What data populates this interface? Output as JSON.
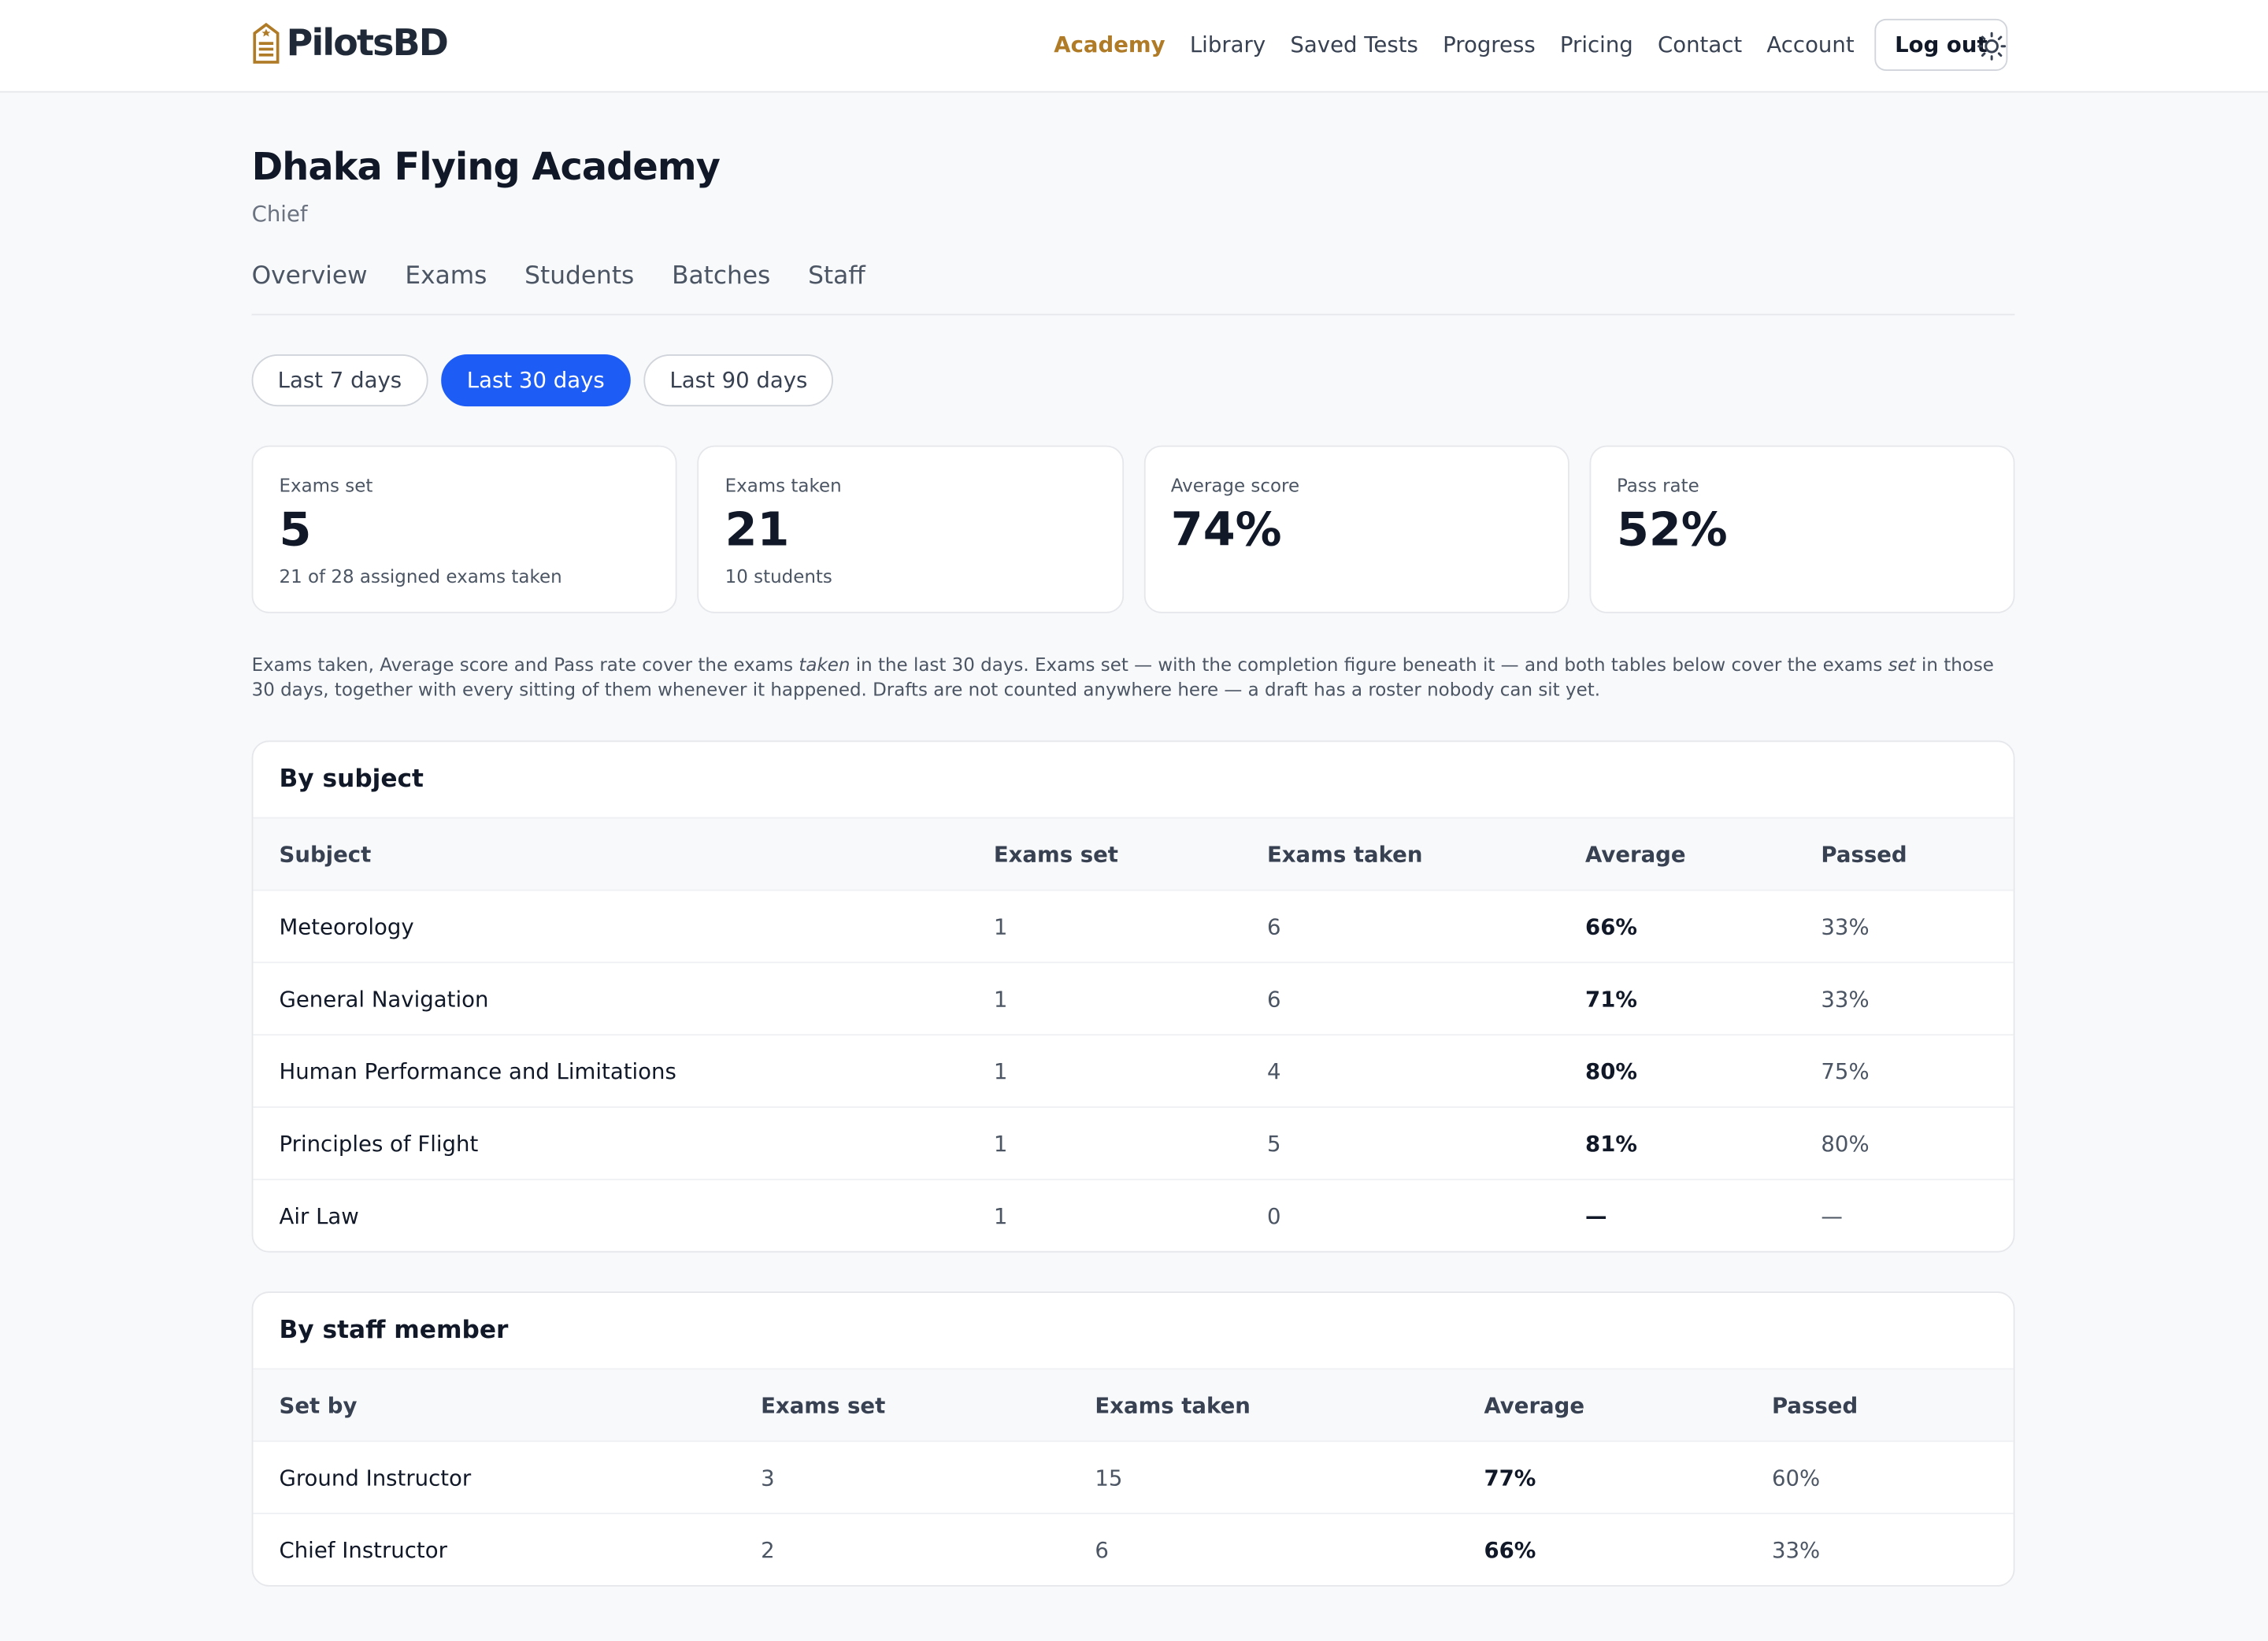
{
  "nav": {
    "brand": "PilotsBD",
    "links": [
      "Academy",
      "Library",
      "Saved Tests",
      "Progress",
      "Pricing",
      "Contact",
      "Account"
    ],
    "active": 0,
    "logout": "Log out"
  },
  "header": {
    "title": "Dhaka Flying Academy",
    "role": "Chief"
  },
  "tabs": [
    "Overview",
    "Exams",
    "Students",
    "Batches",
    "Staff"
  ],
  "filters": {
    "options": [
      "Last 7 days",
      "Last 30 days",
      "Last 90 days"
    ],
    "active": 1
  },
  "stats": [
    {
      "label": "Exams set",
      "value": "5",
      "note": "21 of 28 assigned exams taken"
    },
    {
      "label": "Exams taken",
      "value": "21",
      "note": "10 students"
    },
    {
      "label": "Average score",
      "value": "74%"
    },
    {
      "label": "Pass rate",
      "value": "52%"
    }
  ],
  "note": {
    "segments": [
      {
        "text": "Exams taken, Average score and Pass rate cover the exams ",
        "italic": false
      },
      {
        "text": "taken",
        "italic": true
      },
      {
        "text": " in the last 30 days. Exams set — with the completion figure beneath it — and both tables below cover the exams ",
        "italic": false
      },
      {
        "text": "set",
        "italic": true
      },
      {
        "text": " in those 30 days, together with every sitting of them whenever it happened. Drafts are not counted anywhere here — a draft has a roster nobody can sit yet.",
        "italic": false
      }
    ]
  },
  "tables": [
    {
      "title": "By subject",
      "columns": [
        "Subject",
        "Exams set",
        "Exams taken",
        "Average",
        "Passed"
      ],
      "rows": [
        [
          "Meteorology",
          "1",
          "6",
          "66%",
          "33%"
        ],
        [
          "General Navigation",
          "1",
          "6",
          "71%",
          "33%"
        ],
        [
          "Human Performance and Limitations",
          "1",
          "4",
          "80%",
          "75%"
        ],
        [
          "Principles of Flight",
          "1",
          "5",
          "81%",
          "80%"
        ],
        [
          "Air Law",
          "1",
          "0",
          "—",
          "—"
        ]
      ]
    },
    {
      "title": "By staff member",
      "columns": [
        "Set by",
        "Exams set",
        "Exams taken",
        "Average",
        "Passed"
      ],
      "rows": [
        [
          "Ground Instructor",
          "3",
          "15",
          "77%",
          "60%"
        ],
        [
          "Chief Instructor",
          "2",
          "6",
          "66%",
          "33%"
        ]
      ]
    }
  ]
}
